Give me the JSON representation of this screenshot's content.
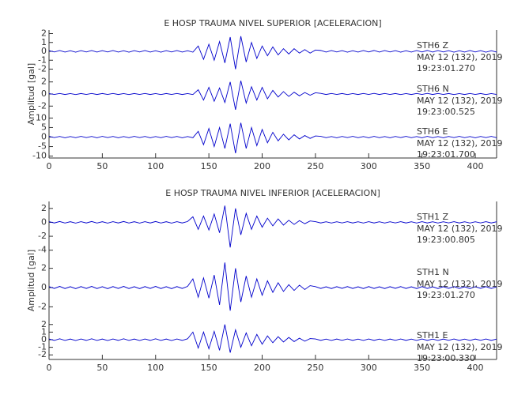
{
  "chart_data": [
    {
      "type": "line",
      "title": "E HOSP TRAUMA NIVEL SUPERIOR [ACELERACION]",
      "ylabel": "Amplitud [gal]",
      "xlim": [
        0,
        420
      ],
      "xticks": [
        0,
        50,
        100,
        150,
        200,
        250,
        300,
        350,
        400
      ],
      "x": [
        0,
        5,
        10,
        15,
        20,
        25,
        30,
        35,
        40,
        45,
        50,
        55,
        60,
        65,
        70,
        75,
        80,
        85,
        90,
        95,
        100,
        105,
        110,
        115,
        120,
        125,
        130,
        135,
        140,
        145,
        150,
        155,
        160,
        165,
        170,
        175,
        180,
        185,
        190,
        195,
        200,
        205,
        210,
        215,
        220,
        225,
        230,
        235,
        240,
        245,
        250,
        255,
        260,
        265,
        270,
        275,
        280,
        285,
        290,
        295,
        300,
        305,
        310,
        315,
        320,
        325,
        330,
        335,
        340,
        345,
        350,
        355,
        360,
        365,
        370,
        375,
        380,
        385,
        390,
        395,
        400,
        405,
        410,
        415,
        420
      ],
      "series": [
        {
          "name": "STH6   Z",
          "date": "MAY 12 (132), 2019",
          "time": "19:23:01.270",
          "color": "#0000cc",
          "ylim": [
            -2.4,
            2.4
          ],
          "yticks": [
            -2,
            -1,
            0,
            1,
            2
          ],
          "values": [
            0.08,
            -0.07,
            0.09,
            -0.08,
            0.07,
            -0.09,
            0.08,
            -0.07,
            0.09,
            -0.08,
            0.08,
            -0.07,
            0.09,
            -0.08,
            0.07,
            -0.09,
            0.08,
            -0.07,
            0.09,
            -0.08,
            0.07,
            -0.09,
            0.08,
            -0.07,
            0.09,
            -0.08,
            0.07,
            -0.09,
            0.6,
            -0.9,
            0.8,
            -1.0,
            1.1,
            -1.3,
            1.6,
            -2.0,
            1.7,
            -1.2,
            1.0,
            -0.8,
            0.6,
            -0.5,
            0.5,
            -0.4,
            0.3,
            -0.3,
            0.3,
            -0.2,
            0.2,
            -0.2,
            0.15,
            0.1,
            -0.08,
            0.09,
            -0.07,
            0.08,
            -0.09,
            0.07,
            -0.08,
            0.09,
            -0.07,
            0.1,
            -0.08,
            0.09,
            -0.07,
            0.08,
            -0.09,
            0.07,
            -0.08,
            0.09,
            -0.07,
            0.1,
            -0.08,
            0.09,
            -0.07,
            0.08,
            -0.09,
            0.07,
            -0.08,
            0.09,
            -0.07,
            0.08,
            -0.09,
            0.07,
            -0.08
          ]
        },
        {
          "name": "STH6   N",
          "date": "MAY 12 (132), 2019",
          "time": "19:23:00.525",
          "color": "#0000cc",
          "ylim": [
            -3.4,
            3.4
          ],
          "yticks": [
            -2,
            0,
            2
          ],
          "values": [
            0.08,
            -0.07,
            0.09,
            -0.08,
            0.07,
            -0.09,
            0.08,
            -0.07,
            0.09,
            -0.08,
            0.08,
            -0.07,
            0.09,
            -0.08,
            0.07,
            -0.09,
            0.08,
            -0.07,
            0.09,
            -0.08,
            0.07,
            -0.09,
            0.08,
            -0.07,
            0.09,
            -0.08,
            0.07,
            -0.09,
            0.7,
            -1.0,
            1.1,
            -1.2,
            1.0,
            -1.4,
            2.0,
            -2.6,
            2.2,
            -1.5,
            1.2,
            -1.0,
            1.1,
            -0.8,
            0.6,
            -0.5,
            0.4,
            -0.4,
            0.3,
            -0.3,
            0.25,
            -0.2,
            0.2,
            0.1,
            -0.08,
            0.09,
            -0.07,
            0.08,
            -0.09,
            0.07,
            -0.08,
            0.09,
            -0.07,
            0.1,
            -0.08,
            0.09,
            -0.07,
            0.08,
            -0.09,
            0.07,
            -0.08,
            0.09,
            -0.07,
            0.1,
            -0.08,
            0.09,
            -0.07,
            0.08,
            -0.09,
            0.07,
            -0.08,
            0.09,
            -0.07,
            0.08,
            -0.09,
            0.07,
            -0.08
          ]
        },
        {
          "name": "STH6   E",
          "date": "MAY 12 (132), 2019",
          "time": "19:23:01.700",
          "color": "#0000cc",
          "ylim": [
            -11,
            11
          ],
          "yticks": [
            -10,
            -5,
            0,
            5,
            10
          ],
          "values": [
            0.4,
            -0.3,
            0.35,
            -0.4,
            0.3,
            -0.35,
            0.4,
            -0.3,
            0.35,
            -0.4,
            0.4,
            -0.3,
            0.35,
            -0.4,
            0.3,
            -0.35,
            0.4,
            -0.3,
            0.35,
            -0.4,
            0.3,
            -0.35,
            0.4,
            -0.3,
            0.35,
            -0.4,
            0.3,
            -0.35,
            3,
            -4,
            4.5,
            -5,
            5,
            -6,
            7,
            -8.5,
            7.5,
            -6,
            5,
            -4.5,
            4,
            -3,
            2.5,
            -2,
            1.5,
            -1.5,
            1.2,
            -1,
            0.8,
            -0.7,
            0.6,
            0.4,
            -0.35,
            0.3,
            -0.4,
            0.35,
            -0.3,
            0.4,
            -0.35,
            0.3,
            -0.4,
            0.4,
            -0.35,
            0.3,
            -0.4,
            0.35,
            -0.3,
            0.4,
            -0.35,
            0.3,
            -0.4,
            0.4,
            -0.35,
            0.3,
            -0.4,
            0.35,
            -0.3,
            0.4,
            -0.35,
            0.3,
            -0.4,
            0.35,
            -0.3,
            0.4,
            -0.35
          ]
        }
      ]
    },
    {
      "type": "line",
      "title": "E HOSP TRAUMA NIVEL INFERIOR [ACELERACION]",
      "ylabel": "Amplitud [gal]",
      "xlim": [
        0,
        420
      ],
      "xticks": [
        0,
        50,
        100,
        150,
        200,
        250,
        300,
        350,
        400
      ],
      "x": [
        0,
        5,
        10,
        15,
        20,
        25,
        30,
        35,
        40,
        45,
        50,
        55,
        60,
        65,
        70,
        75,
        80,
        85,
        90,
        95,
        100,
        105,
        110,
        115,
        120,
        125,
        130,
        135,
        140,
        145,
        150,
        155,
        160,
        165,
        170,
        175,
        180,
        185,
        190,
        195,
        200,
        205,
        210,
        215,
        220,
        225,
        230,
        235,
        240,
        245,
        250,
        255,
        260,
        265,
        270,
        275,
        280,
        285,
        290,
        295,
        300,
        305,
        310,
        315,
        320,
        325,
        330,
        335,
        340,
        345,
        350,
        355,
        360,
        365,
        370,
        375,
        380,
        385,
        390,
        395,
        400,
        405,
        410,
        415,
        420
      ],
      "series": [
        {
          "name": "STH1   Z",
          "date": "MAY 12 (132), 2019",
          "time": "19:23:00.805",
          "color": "#0000cc",
          "ylim": [
            -4.6,
            3
          ],
          "yticks": [
            -4,
            -2,
            0,
            2
          ],
          "values": [
            0.1,
            -0.09,
            0.12,
            -0.1,
            0.09,
            -0.11,
            0.1,
            -0.09,
            0.12,
            -0.1,
            0.09,
            -0.11,
            0.1,
            -0.09,
            0.12,
            -0.1,
            0.09,
            -0.11,
            0.1,
            -0.09,
            0.12,
            -0.1,
            0.09,
            -0.11,
            0.1,
            -0.09,
            0.12,
            0.8,
            -1.0,
            0.9,
            -1.1,
            1.2,
            -1.5,
            2.4,
            -3.6,
            2.0,
            -1.8,
            1.3,
            -1.0,
            0.9,
            -0.7,
            0.6,
            -0.5,
            0.5,
            -0.4,
            0.3,
            -0.3,
            0.25,
            -0.2,
            0.2,
            0.1,
            -0.09,
            0.08,
            -0.1,
            0.09,
            -0.08,
            0.1,
            -0.09,
            0.08,
            -0.1,
            0.1,
            -0.09,
            0.08,
            -0.1,
            0.09,
            -0.08,
            0.1,
            -0.09,
            0.08,
            -0.1,
            0.1,
            -0.09,
            0.08,
            -0.1,
            0.09,
            -0.08,
            0.1,
            -0.09,
            0.08,
            -0.1,
            0.09,
            -0.08,
            0.1,
            -0.09,
            0.08
          ]
        },
        {
          "name": "STH1   N",
          "date": "MAY 12 (132), 2019",
          "time": "19:23:01.270",
          "color": "#0000cc",
          "ylim": [
            -3.2,
            3.2
          ],
          "yticks": [
            -2,
            0,
            2
          ],
          "values": [
            0.1,
            -0.09,
            0.12,
            -0.1,
            0.09,
            -0.11,
            0.1,
            -0.09,
            0.12,
            -0.1,
            0.09,
            -0.11,
            0.1,
            -0.09,
            0.12,
            -0.1,
            0.09,
            -0.11,
            0.1,
            -0.09,
            0.12,
            -0.1,
            0.09,
            -0.11,
            0.1,
            -0.09,
            0.12,
            0.9,
            -1.0,
            1.0,
            -1.1,
            1.3,
            -1.8,
            2.6,
            -2.4,
            2.0,
            -1.5,
            1.2,
            -1.0,
            0.9,
            -0.8,
            0.7,
            -0.5,
            0.5,
            -0.4,
            0.3,
            -0.3,
            0.25,
            -0.2,
            0.2,
            0.1,
            -0.09,
            0.08,
            -0.1,
            0.09,
            -0.08,
            0.1,
            -0.09,
            0.08,
            -0.1,
            0.1,
            -0.09,
            0.08,
            -0.1,
            0.09,
            -0.08,
            0.1,
            -0.09,
            0.08,
            -0.1,
            0.1,
            -0.09,
            0.08,
            -0.1,
            0.09,
            -0.08,
            0.1,
            -0.09,
            0.08,
            -0.1,
            0.09,
            -0.08,
            0.1,
            -0.09,
            0.08
          ]
        },
        {
          "name": "STH1   E",
          "date": "MAY 12 (132), 2019",
          "time": "19:23:00.330",
          "color": "#0000cc",
          "ylim": [
            -2.6,
            2.6
          ],
          "yticks": [
            -2,
            -1,
            0,
            1,
            2
          ],
          "values": [
            0.1,
            -0.09,
            0.12,
            -0.1,
            0.09,
            -0.11,
            0.1,
            -0.09,
            0.12,
            -0.1,
            0.09,
            -0.11,
            0.1,
            -0.09,
            0.12,
            -0.1,
            0.09,
            -0.11,
            0.1,
            -0.09,
            0.12,
            -0.1,
            0.09,
            -0.11,
            0.1,
            -0.09,
            0.12,
            1.0,
            -1.1,
            1.0,
            -1.2,
            1.1,
            -1.4,
            2.0,
            -1.7,
            1.3,
            -1.0,
            0.9,
            -0.8,
            0.7,
            -0.6,
            0.5,
            -0.4,
            0.4,
            -0.3,
            0.3,
            -0.25,
            0.2,
            -0.2,
            0.15,
            0.1,
            -0.09,
            0.08,
            -0.1,
            0.09,
            -0.08,
            0.1,
            -0.09,
            0.08,
            -0.1,
            0.1,
            -0.09,
            0.08,
            -0.1,
            0.09,
            -0.08,
            0.1,
            -0.09,
            0.08,
            -0.1,
            0.1,
            -0.09,
            0.08,
            -0.1,
            0.09,
            -0.08,
            0.1,
            -0.09,
            0.08,
            -0.1,
            0.09,
            -0.08,
            0.1,
            -0.09,
            0.08
          ]
        }
      ]
    }
  ]
}
